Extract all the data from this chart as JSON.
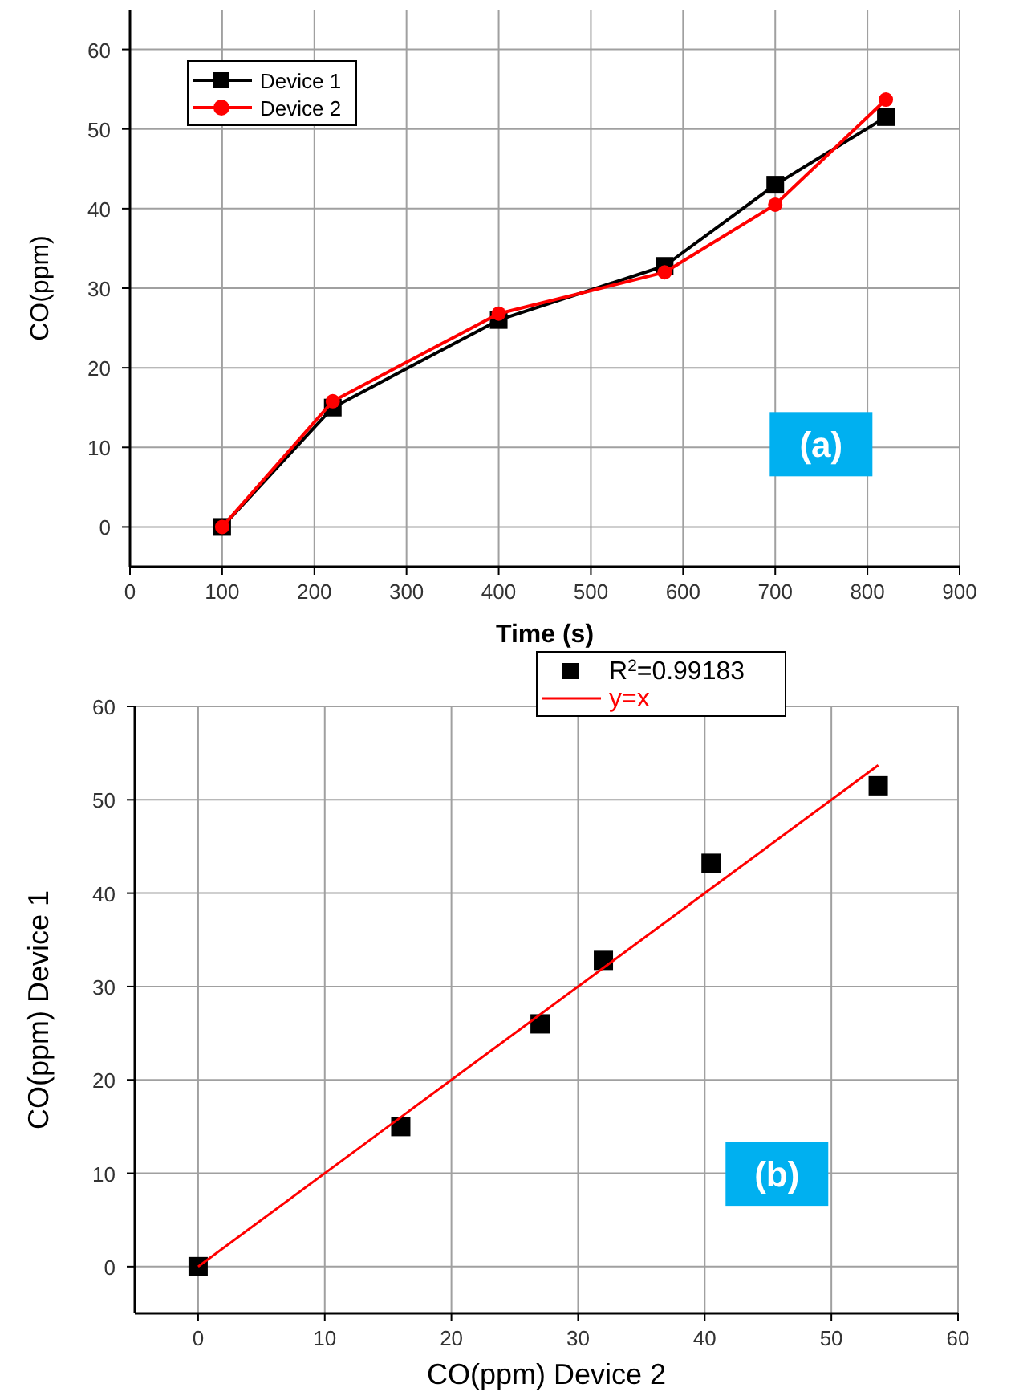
{
  "chart_data": [
    {
      "type": "line",
      "xlabel": "Time (s)",
      "ylabel": "CO(ppm)",
      "x": [
        100,
        220,
        400,
        580,
        700,
        820
      ],
      "series": [
        {
          "name": "Device 1",
          "color": "#000000",
          "marker": "square",
          "values": [
            0,
            15,
            26,
            32.8,
            43,
            51.5
          ]
        },
        {
          "name": "Device 2",
          "color": "#ff0000",
          "marker": "circle",
          "values": [
            0,
            15.8,
            26.8,
            32,
            40.5,
            53.7
          ]
        }
      ],
      "xlim": [
        0,
        900
      ],
      "xticks": [
        0,
        100,
        200,
        300,
        400,
        500,
        600,
        700,
        800,
        900
      ],
      "ylim": [
        -5,
        65
      ],
      "yticks": [
        0,
        10,
        20,
        30,
        40,
        50,
        60
      ],
      "grid": true,
      "legend": "top left",
      "annotations": [
        "(a)"
      ]
    },
    {
      "type": "scatter",
      "xlabel": "CO(ppm) Device 2",
      "ylabel": "CO(ppm) Device 1",
      "series": [
        {
          "name": "R$^{2}$=0.99183",
          "color": "#000000",
          "marker": "square",
          "x": [
            0,
            16,
            27,
            32,
            40.5,
            53.7
          ],
          "values": [
            0,
            15,
            26,
            32.8,
            43.2,
            51.5
          ]
        },
        {
          "name": "y=x",
          "type": "line",
          "color": "#ff0000",
          "marker": "none",
          "x": [
            0,
            53.7
          ],
          "values": [
            0,
            53.7
          ]
        }
      ],
      "xlim": [
        -5,
        60
      ],
      "xticks": [
        0,
        10,
        20,
        30,
        40,
        50,
        60
      ],
      "ylim": [
        -5,
        60
      ],
      "yticks": [
        0,
        10,
        20,
        30,
        40,
        50,
        60
      ],
      "grid": true,
      "legend": "top",
      "annotations": [
        "(b)"
      ]
    }
  ]
}
